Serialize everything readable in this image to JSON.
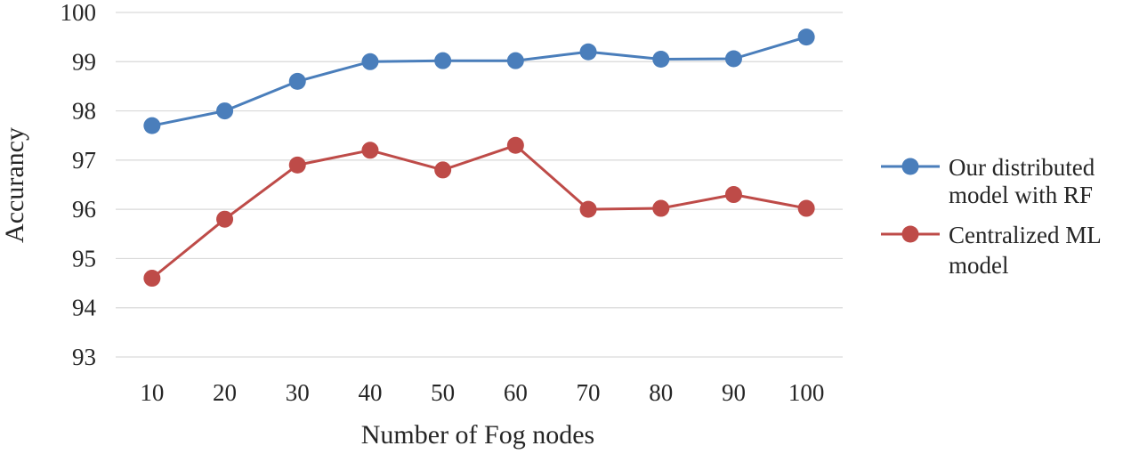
{
  "chart_data": {
    "type": "line",
    "title": "",
    "xlabel": "Number of Fog nodes",
    "ylabel": "Accurancy",
    "categories": [
      "10",
      "20",
      "30",
      "40",
      "50",
      "60",
      "70",
      "80",
      "90",
      "100"
    ],
    "ylim": [
      93,
      100
    ],
    "yticks": [
      "93",
      "94",
      "95",
      "96",
      "97",
      "98",
      "99",
      "100"
    ],
    "grid": true,
    "legend_position": "right",
    "series": [
      {
        "name": "Our distributed model with RF",
        "legend_lines": [
          "Our distributed",
          "model with RF"
        ],
        "color": "#4a7ebb",
        "values": [
          97.7,
          98.0,
          98.6,
          99.0,
          99.02,
          99.02,
          99.2,
          99.05,
          99.06,
          99.5
        ]
      },
      {
        "name": "Centralized ML model",
        "legend_lines": [
          "Centralized ML",
          "model"
        ],
        "color": "#be4b48",
        "values": [
          94.6,
          95.8,
          96.9,
          97.2,
          96.8,
          97.3,
          96.0,
          96.02,
          96.3,
          96.02
        ]
      }
    ]
  }
}
